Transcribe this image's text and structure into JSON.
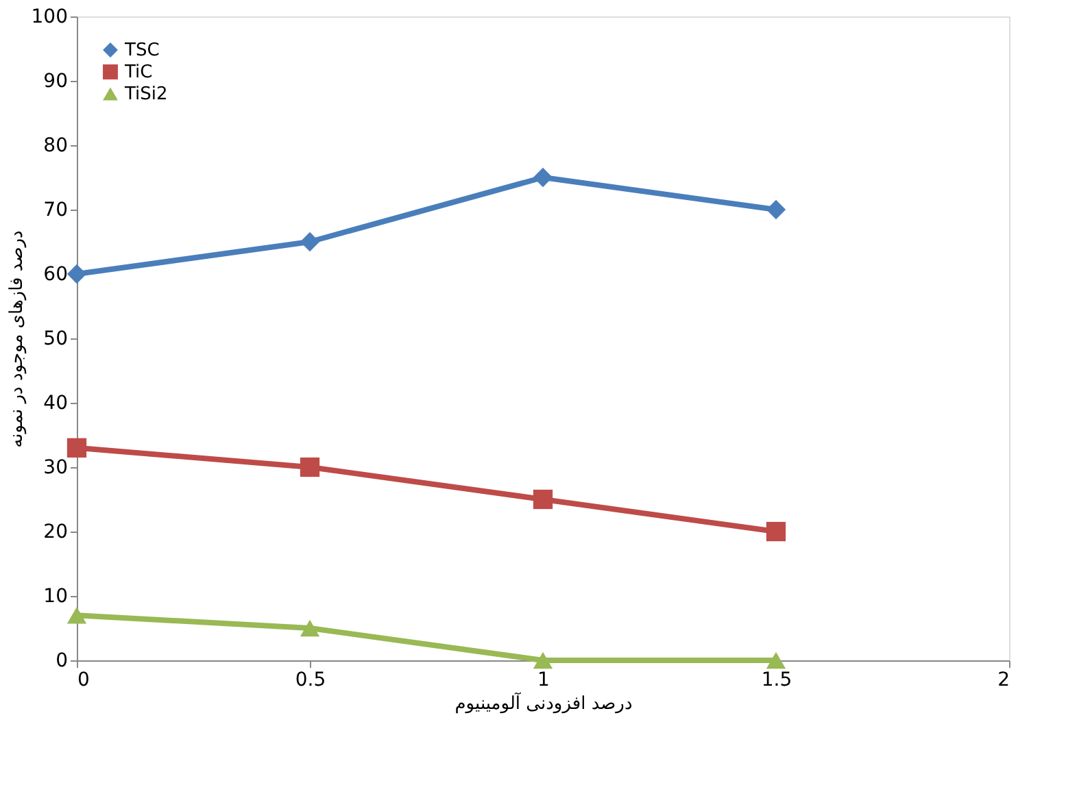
{
  "chart_data": {
    "type": "line",
    "xlabel": "درصد افزودنی آلومینیوم",
    "ylabel": "درصد فازهای موجود در نمونه",
    "x": [
      0,
      0.5,
      1,
      1.5
    ],
    "xlim": [
      0,
      2
    ],
    "xticks": [
      0,
      0.5,
      1,
      1.5,
      2
    ],
    "ylim": [
      0,
      100
    ],
    "yticks": [
      0,
      10,
      20,
      30,
      40,
      50,
      60,
      70,
      80,
      90,
      100
    ],
    "grid": false,
    "legend": "top left",
    "line_style": "solid",
    "series": [
      {
        "name": "TSC",
        "color": "#4a7ebb",
        "marker": "diamond",
        "values": [
          60,
          65,
          75,
          70
        ]
      },
      {
        "name": "TiC",
        "color": "#be4b48",
        "marker": "square",
        "values": [
          33,
          30,
          25,
          20
        ]
      },
      {
        "name": "TiSi2",
        "color": "#98b954",
        "marker": "triangle",
        "values": [
          7,
          5,
          0,
          0
        ]
      }
    ]
  }
}
